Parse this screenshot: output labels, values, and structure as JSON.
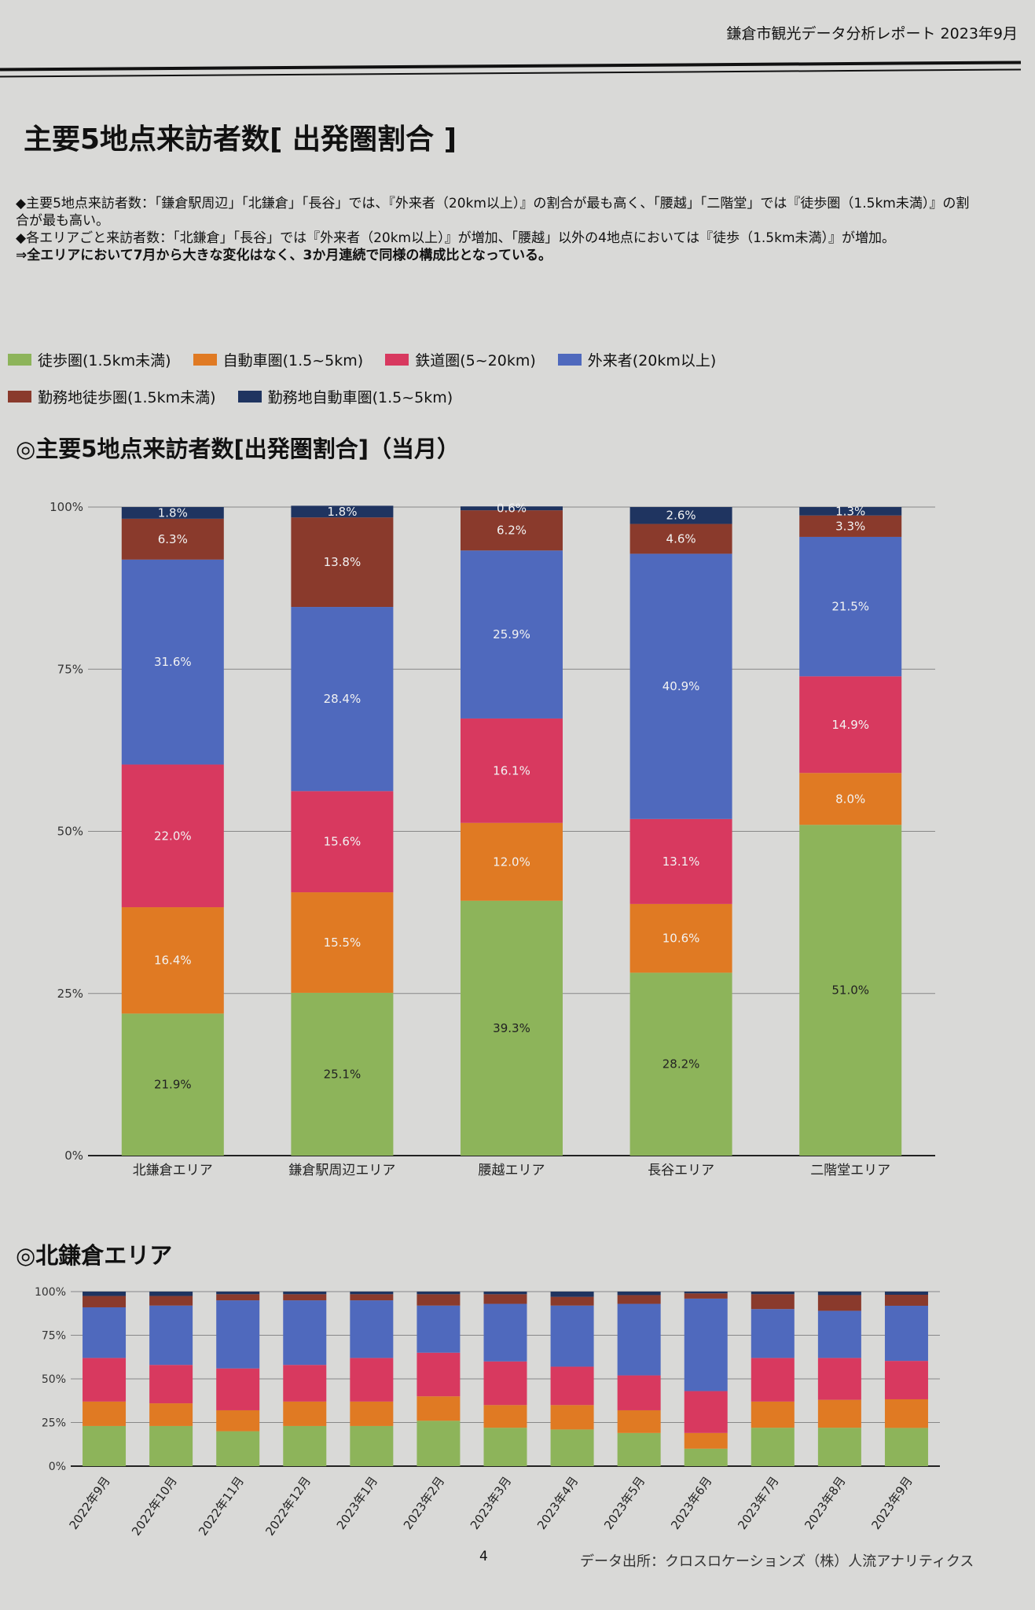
{
  "header": "鎌倉市観光データ分析レポート 2023年9月",
  "title": "主要5地点来訪者数[ 出発圏割合 ]",
  "summary": [
    {
      "text": "◆主要5地点来訪者数：「鎌倉駅周辺」「北鎌倉」「長谷」では、『外来者（20km以上）』の割合が最も高く、「腰越」「二階堂」では『徒歩圏（1.5km未満）』の割合が最も高い。",
      "bold": false
    },
    {
      "text": "◆各エリアごと来訪者数：「北鎌倉」「長谷」では『外来者（20km以上）』が増加、「腰越」以外の4地点においては『徒歩（1.5km未満）』が増加。",
      "bold": false
    },
    {
      "text": "⇒全エリアにおいて7月から大きな変化はなく、3か月連続で同様の構成比となっている。",
      "bold": true
    }
  ],
  "legend": [
    {
      "label": "徒歩圏(1.5km未満)",
      "color": "#8db45a"
    },
    {
      "label": "自動車圏(1.5~5km)",
      "color": "#e07a23"
    },
    {
      "label": "鉄道圏(5~20km)",
      "color": "#d8395f"
    },
    {
      "label": "外来者(20km以上)",
      "color": "#4f69bd"
    },
    {
      "label": "勤務地徒歩圏(1.5km未満)",
      "color": "#8a3a2c"
    },
    {
      "label": "勤務地自動車圏(1.5~5km)",
      "color": "#1f3460"
    }
  ],
  "chart_data": [
    {
      "type": "bar",
      "stacked": true,
      "title": "◎主要5地点来訪者数[出発圏割合]（当月）",
      "categories": [
        "北鎌倉エリア",
        "鎌倉駅周辺エリア",
        "腰越エリア",
        "長谷エリア",
        "二階堂エリア"
      ],
      "yticks": [
        "0%",
        "25%",
        "50%",
        "75%",
        "100%"
      ],
      "ylim": [
        0,
        100
      ],
      "grid": true,
      "series": [
        {
          "name": "徒歩圏(1.5km未満)",
          "values": [
            21.9,
            25.1,
            39.3,
            28.2,
            51.0
          ]
        },
        {
          "name": "自動車圏(1.5~5km)",
          "values": [
            16.4,
            15.5,
            12.0,
            10.6,
            8.0
          ]
        },
        {
          "name": "鉄道圏(5~20km)",
          "values": [
            22.0,
            15.6,
            16.1,
            13.1,
            14.9
          ]
        },
        {
          "name": "外来者(20km以上)",
          "values": [
            31.6,
            28.4,
            25.9,
            40.9,
            21.5
          ]
        },
        {
          "name": "勤務地徒歩圏(1.5km未満)",
          "values": [
            6.3,
            13.8,
            6.2,
            4.6,
            3.3
          ]
        },
        {
          "name": "勤務地自動車圏(1.5~5km)",
          "values": [
            1.8,
            1.8,
            0.6,
            2.6,
            1.3
          ]
        }
      ],
      "data_labels": [
        [
          "21.9%",
          "25.1%",
          "39.3%",
          "28.2%",
          "51.0%"
        ],
        [
          "16.4%",
          "15.5%",
          "12.0%",
          "10.6%",
          "8.0%"
        ],
        [
          "22.0%",
          "15.6%",
          "16.1%",
          "13.1%",
          "14.9%"
        ],
        [
          "31.6%",
          "28.4%",
          "25.9%",
          "40.9%",
          "21.5%"
        ],
        [
          "6.3%",
          "13.8%",
          "6.2%",
          "4.6%",
          "3.3%"
        ],
        [
          "1.8%",
          "1.8%",
          "0.6%",
          "2.6%",
          "1.3%"
        ]
      ]
    },
    {
      "type": "bar",
      "stacked": true,
      "title": "◎北鎌倉エリア",
      "categories": [
        "2022年9月",
        "2022年10月",
        "2022年11月",
        "2022年12月",
        "2023年1月",
        "2023年2月",
        "2023年3月",
        "2023年4月",
        "2023年5月",
        "2023年6月",
        "2023年7月",
        "2023年8月",
        "2023年9月"
      ],
      "yticks": [
        "0%",
        "25%",
        "50%",
        "75%",
        "100%"
      ],
      "ylim": [
        0,
        100
      ],
      "grid": true,
      "series": [
        {
          "name": "徒歩圏(1.5km未満)",
          "values": [
            23,
            23,
            20,
            23,
            23,
            26,
            22,
            21,
            19,
            10,
            22,
            22,
            21.9
          ]
        },
        {
          "name": "自動車圏(1.5~5km)",
          "values": [
            14,
            13,
            12,
            14,
            14,
            14,
            13,
            14,
            13,
            9,
            15,
            16,
            16.4
          ]
        },
        {
          "name": "鉄道圏(5~20km)",
          "values": [
            25,
            22,
            24,
            21,
            25,
            25,
            25,
            22,
            20,
            24,
            25,
            24,
            22.0
          ]
        },
        {
          "name": "外来者(20km以上)",
          "values": [
            29,
            34,
            39,
            37,
            33,
            27,
            33,
            35,
            41,
            53,
            28,
            27,
            31.6
          ]
        },
        {
          "name": "勤務地徒歩圏(1.5km未満)",
          "values": [
            6.5,
            5.5,
            3.5,
            3.5,
            3.5,
            6.5,
            5.5,
            5,
            5,
            3,
            8.5,
            9,
            6.3
          ]
        },
        {
          "name": "勤務地自動車圏(1.5~5km)",
          "values": [
            2.5,
            2.5,
            1.5,
            1.5,
            1.5,
            1.5,
            1.5,
            3,
            2,
            1,
            1.5,
            2,
            1.8
          ]
        }
      ]
    }
  ],
  "footer": {
    "page": "4",
    "source": "データ出所：クロスロケーションズ（株）人流アナリティクス"
  }
}
